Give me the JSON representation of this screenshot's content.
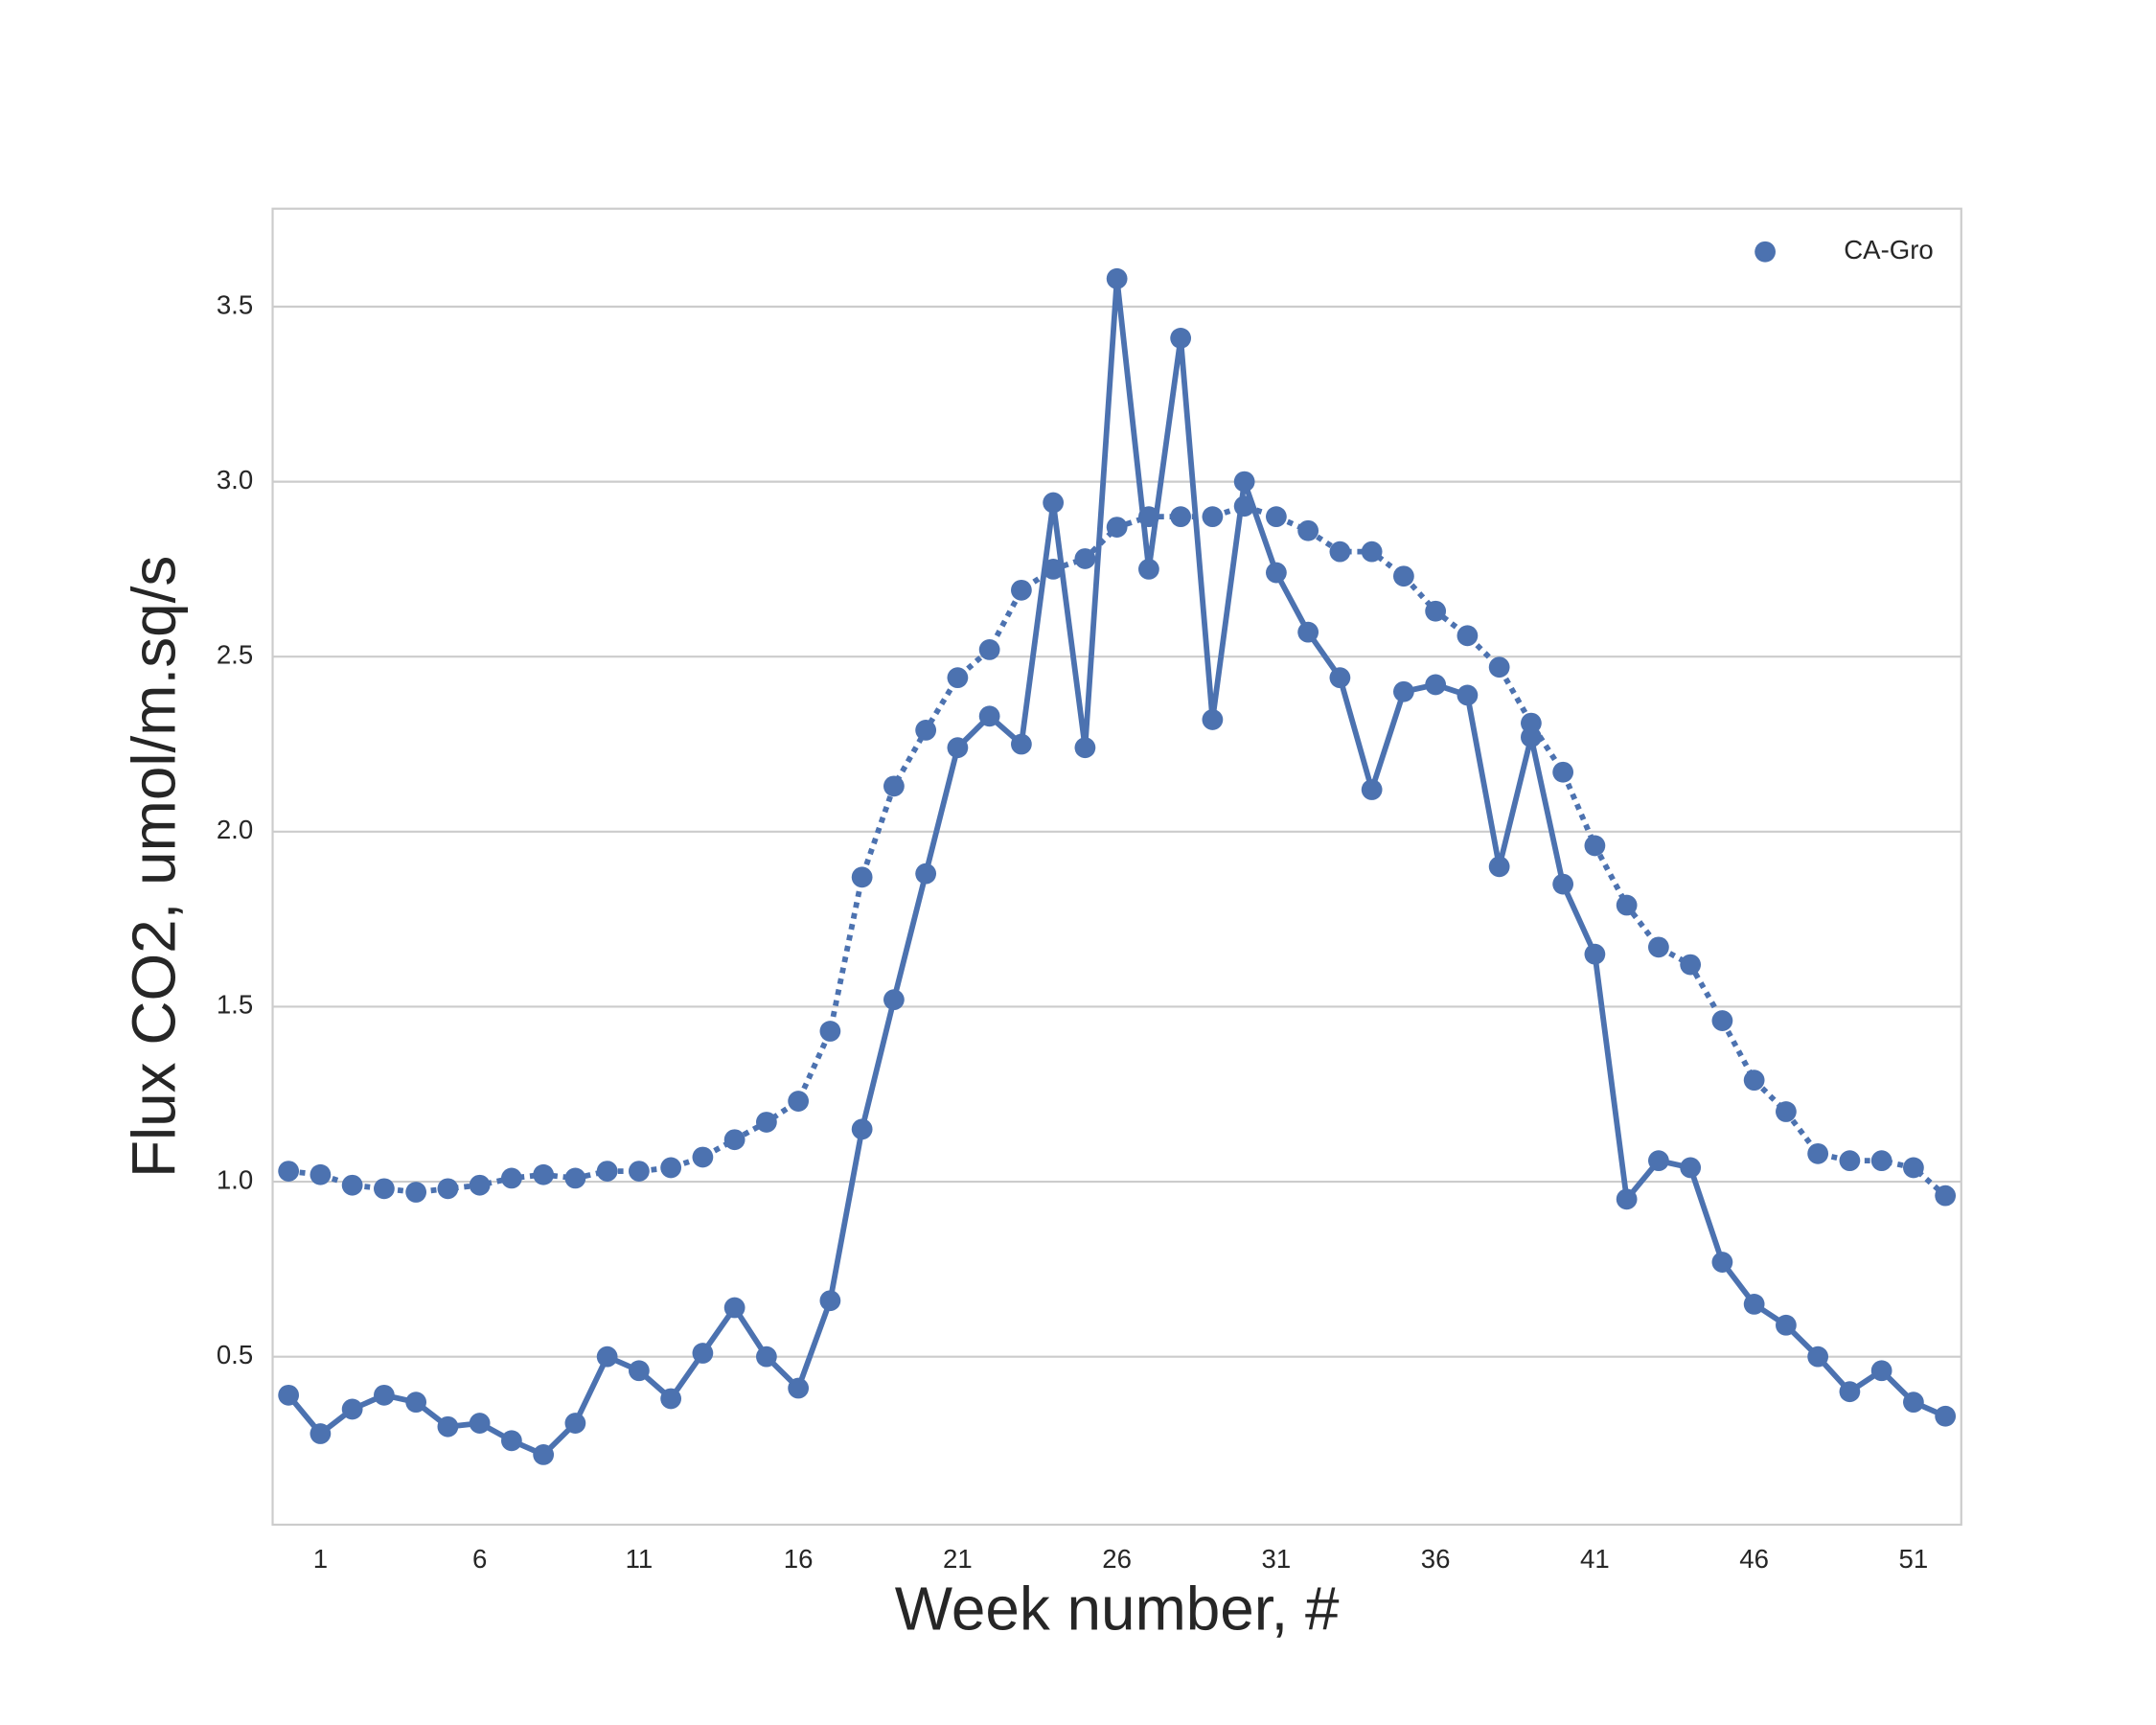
{
  "chart_data": {
    "type": "line",
    "xlabel": "Week number, #",
    "ylabel": "Flux CO2, umol/m.sq/s",
    "categories": [
      null,
      "1",
      null,
      null,
      null,
      null,
      "6",
      null,
      null,
      null,
      null,
      "11",
      null,
      null,
      null,
      null,
      "16",
      null,
      null,
      null,
      null,
      "21",
      null,
      null,
      null,
      null,
      "26",
      null,
      null,
      null,
      null,
      "31",
      null,
      null,
      null,
      null,
      "36",
      null,
      null,
      null,
      null,
      "41",
      null,
      null,
      null,
      null,
      "46",
      null,
      null,
      null,
      null,
      "51",
      null
    ],
    "series": [
      {
        "name": "CA-Gro",
        "color": "#4c72b0",
        "linestyle": "solid",
        "values": [
          0.39,
          0.28,
          0.35,
          0.39,
          0.37,
          0.3,
          0.31,
          0.26,
          0.22,
          0.31,
          0.5,
          0.46,
          0.38,
          0.51,
          0.64,
          0.5,
          0.41,
          0.66,
          1.15,
          1.52,
          1.88,
          2.24,
          2.33,
          2.25,
          2.94,
          2.24,
          3.58,
          2.75,
          3.41,
          2.32,
          3.0,
          2.74,
          2.57,
          2.44,
          2.12,
          2.4,
          2.42,
          2.39,
          1.9,
          2.27,
          1.85,
          1.65,
          0.95,
          1.06,
          1.04,
          0.77,
          0.65,
          0.59,
          0.5,
          0.4,
          0.46,
          0.37,
          0.33
        ]
      },
      {
        "color": "#4c72b0",
        "linestyle": "dotted",
        "values": [
          1.03,
          1.02,
          0.99,
          0.98,
          0.97,
          0.98,
          0.99,
          1.01,
          1.02,
          1.01,
          1.03,
          1.03,
          1.04,
          1.07,
          1.12,
          1.17,
          1.23,
          1.43,
          1.87,
          2.13,
          2.29,
          2.44,
          2.52,
          2.69,
          2.75,
          2.78,
          2.87,
          2.9,
          2.9,
          2.9,
          2.93,
          2.9,
          2.86,
          2.8,
          2.8,
          2.73,
          2.63,
          2.56,
          2.47,
          2.31,
          2.17,
          1.96,
          1.79,
          1.67,
          1.62,
          1.46,
          1.29,
          1.2,
          1.08,
          1.06,
          1.06,
          1.04,
          0.96
        ]
      }
    ],
    "ylim": [
      0.02,
      3.78
    ],
    "yticks": [
      0.5,
      {
        "value": 1,
        "label": "1.0"
      },
      1.5,
      {
        "value": 2,
        "label": "2.0"
      },
      2.5,
      {
        "value": 3,
        "label": "3.0"
      },
      3.5
    ],
    "grid": true,
    "legend": "upper right"
  }
}
